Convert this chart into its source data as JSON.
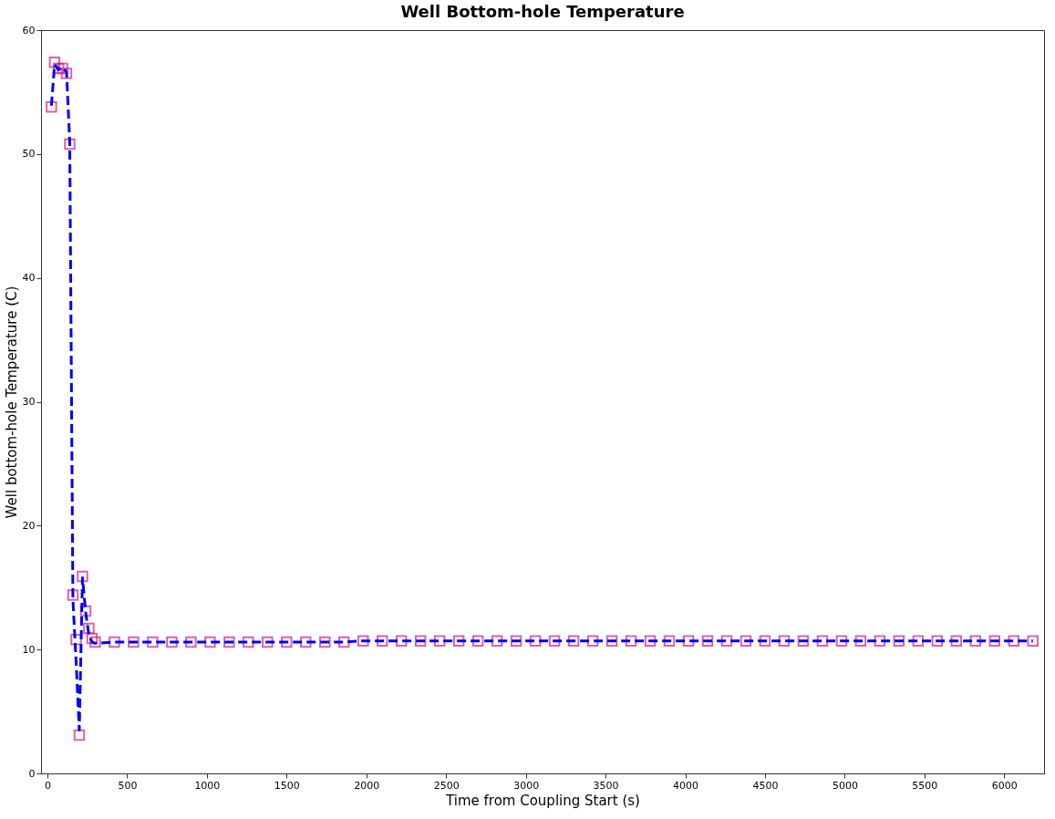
{
  "chart_data": {
    "type": "line",
    "title": "Well Bottom-hole Temperature",
    "xlabel": "Time from Coupling Start (s)",
    "ylabel": "Well bottom-hole Temperature (C)",
    "x": [
      25,
      45,
      70,
      95,
      120,
      140,
      160,
      180,
      200,
      220,
      240,
      260,
      280,
      300,
      420,
      540,
      660,
      780,
      900,
      1020,
      1140,
      1260,
      1380,
      1500,
      1620,
      1740,
      1860,
      1980,
      2100,
      2220,
      2340,
      2460,
      2580,
      2700,
      2820,
      2940,
      3060,
      3180,
      3300,
      3420,
      3540,
      3660,
      3780,
      3900,
      4020,
      4140,
      4260,
      4380,
      4500,
      4620,
      4740,
      4860,
      4980,
      5100,
      5220,
      5340,
      5460,
      5580,
      5700,
      5820,
      5940,
      6060,
      6180
    ],
    "series": [
      {
        "type": "scatter",
        "marker": "square",
        "color": "#cc1f8a",
        "values": [
          53.8,
          57.4,
          56.9,
          56.9,
          56.5,
          50.8,
          14.4,
          10.8,
          3.1,
          15.9,
          13.1,
          11.7,
          10.9,
          10.6,
          10.6,
          10.6,
          10.6,
          10.6,
          10.6,
          10.6,
          10.6,
          10.6,
          10.6,
          10.6,
          10.6,
          10.6,
          10.6,
          10.7,
          10.7,
          10.7,
          10.7,
          10.7,
          10.7,
          10.7,
          10.7,
          10.7,
          10.7,
          10.7,
          10.7,
          10.7,
          10.7,
          10.7,
          10.7,
          10.7,
          10.7,
          10.7,
          10.7,
          10.7,
          10.7,
          10.7,
          10.7,
          10.7,
          10.7,
          10.7,
          10.7,
          10.7,
          10.7,
          10.7,
          10.7,
          10.7,
          10.7,
          10.7,
          10.7
        ]
      },
      {
        "line_style": "dashed",
        "color": "#0000ff",
        "values": [
          53.9,
          57.2,
          56.8,
          57.0,
          56.6,
          51.0,
          14.0,
          9.0,
          3.5,
          15.8,
          13.0,
          11.2,
          10.6,
          10.5,
          10.6,
          10.6,
          10.6,
          10.6,
          10.6,
          10.6,
          10.6,
          10.6,
          10.6,
          10.6,
          10.6,
          10.6,
          10.6,
          10.7,
          10.7,
          10.7,
          10.7,
          10.7,
          10.7,
          10.7,
          10.7,
          10.7,
          10.7,
          10.7,
          10.7,
          10.7,
          10.7,
          10.7,
          10.7,
          10.7,
          10.7,
          10.7,
          10.7,
          10.7,
          10.7,
          10.7,
          10.7,
          10.7,
          10.7,
          10.7,
          10.7,
          10.7,
          10.7,
          10.7,
          10.7,
          10.7,
          10.7,
          10.7,
          10.7
        ]
      }
    ],
    "xlim": [
      -40,
      6250
    ],
    "ylim": [
      0,
      60
    ],
    "xticks": [
      0,
      500,
      1000,
      1500,
      2000,
      2500,
      3000,
      3500,
      4000,
      4500,
      5000,
      5500,
      6000
    ],
    "yticks": [
      0,
      10,
      20,
      30,
      40,
      50,
      60
    ],
    "grid": false
  }
}
